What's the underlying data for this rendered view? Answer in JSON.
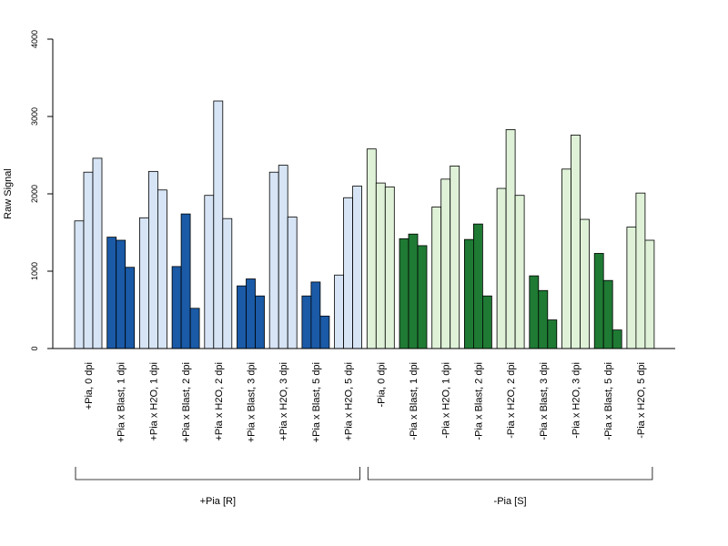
{
  "chart_data": {
    "type": "bar",
    "ylabel": "Raw Signal",
    "ylim": [
      0,
      4000
    ],
    "yticks": [
      0,
      1000,
      2000,
      3000,
      4000
    ],
    "groups_per_category": 3,
    "categories": [
      {
        "label": "+Pia, 0 dpi",
        "values": [
          1650,
          2280,
          2460
        ],
        "color": "#d6e4f5"
      },
      {
        "label": "+Pia x Blast, 1 dpi",
        "values": [
          1440,
          1400,
          1050
        ],
        "color": "#1a5aa6"
      },
      {
        "label": "+Pia x H2O, 1 dpi",
        "values": [
          1690,
          2290,
          2050
        ],
        "color": "#d6e4f5"
      },
      {
        "label": "+Pia x Blast, 2 dpi",
        "values": [
          1060,
          1740,
          520
        ],
        "color": "#1a5aa6"
      },
      {
        "label": "+Pia x H2O, 2 dpi",
        "values": [
          1980,
          3200,
          1680
        ],
        "color": "#d6e4f5"
      },
      {
        "label": "+Pia x Blast, 3 dpi",
        "values": [
          810,
          900,
          680
        ],
        "color": "#1a5aa6"
      },
      {
        "label": "+Pia x H2O, 3 dpi",
        "values": [
          2280,
          2370,
          1700
        ],
        "color": "#d6e4f5"
      },
      {
        "label": "+Pia x Blast, 5 dpi",
        "values": [
          680,
          860,
          420
        ],
        "color": "#1a5aa6"
      },
      {
        "label": "+Pia x H2O, 5 dpi",
        "values": [
          950,
          1950,
          2100
        ],
        "color": "#d6e4f5"
      },
      {
        "label": "-Pia, 0 dpi",
        "values": [
          2580,
          2140,
          2090
        ],
        "color": "#dff2d8"
      },
      {
        "label": "-Pia x Blast, 1 dpi",
        "values": [
          1420,
          1480,
          1330
        ],
        "color": "#1f7a34"
      },
      {
        "label": "-Pia x H2O, 1 dpi",
        "values": [
          1830,
          2190,
          2360
        ],
        "color": "#dff2d8"
      },
      {
        "label": "-Pia x Blast, 2 dpi",
        "values": [
          1410,
          1610,
          680
        ],
        "color": "#1f7a34"
      },
      {
        "label": "-Pia x H2O, 2 dpi",
        "values": [
          2070,
          2830,
          1980
        ],
        "color": "#dff2d8"
      },
      {
        "label": "-Pia x Blast, 3 dpi",
        "values": [
          940,
          750,
          370
        ],
        "color": "#1f7a34"
      },
      {
        "label": "-Pia x H2O, 3 dpi",
        "values": [
          2320,
          2760,
          1670
        ],
        "color": "#dff2d8"
      },
      {
        "label": "-Pia x Blast, 5 dpi",
        "values": [
          1230,
          880,
          240
        ],
        "color": "#1f7a34"
      },
      {
        "label": "-Pia x H2O, 5 dpi",
        "values": [
          1570,
          2010,
          1400
        ],
        "color": "#dff2d8"
      }
    ],
    "brackets": [
      {
        "label": "+Pia [R]",
        "from": 0,
        "to": 8
      },
      {
        "label": "-Pia [S]",
        "from": 9,
        "to": 17
      }
    ],
    "grid": false,
    "legend": "none"
  }
}
